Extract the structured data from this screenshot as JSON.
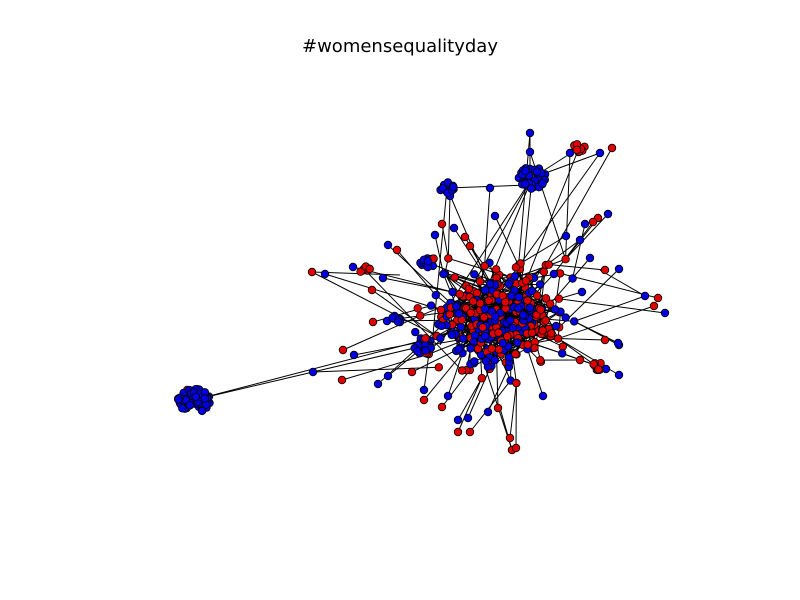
{
  "title": "#womensequalityday",
  "colors": {
    "blue": "#0000e0",
    "red": "#e00000",
    "edge": "#000000",
    "background": "#ffffff"
  },
  "chart_data": {
    "type": "network",
    "title": "#womensequalityday",
    "node_colors": [
      "blue",
      "red"
    ],
    "axes_visible": false,
    "legend": "none"
  }
}
